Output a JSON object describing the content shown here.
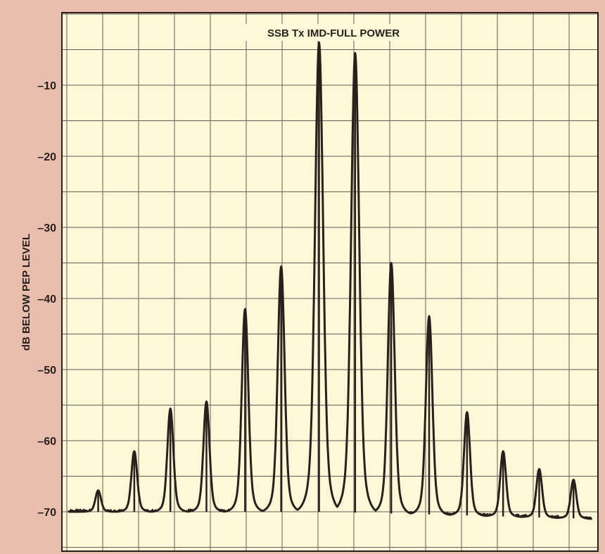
{
  "chart_data": {
    "type": "line",
    "title": "SSB Tx IMD-FULL POWER",
    "xlabel": "",
    "ylabel": "dB BELOW PEP LEVEL",
    "ylim": [
      -75,
      0
    ],
    "yticks": [
      -10,
      -20,
      -30,
      -40,
      -50,
      -60,
      -70
    ],
    "ytick_labels": [
      "–10",
      "–20",
      "–30",
      "–40",
      "–50",
      "–60",
      "–70"
    ],
    "xlim": [
      0,
      14.5
    ],
    "grid": true,
    "background_color": "#fdf8d7",
    "grid_color": "#6a5a55",
    "trace_color": "#2b1f1c",
    "noise_floor": [
      {
        "x": 0,
        "y": -70
      },
      {
        "x": 7,
        "y": -70
      },
      {
        "x": 11,
        "y": -70.5
      },
      {
        "x": 14.5,
        "y": -71
      }
    ],
    "peaks": [
      {
        "x": 0.83,
        "y": -67
      },
      {
        "x": 1.83,
        "y": -61.5
      },
      {
        "x": 2.83,
        "y": -55.5
      },
      {
        "x": 3.83,
        "y": -54.5
      },
      {
        "x": 4.9,
        "y": -41.5
      },
      {
        "x": 5.9,
        "y": -35.5
      },
      {
        "x": 6.95,
        "y": -4
      },
      {
        "x": 7.95,
        "y": -5.5
      },
      {
        "x": 8.95,
        "y": -35
      },
      {
        "x": 10.0,
        "y": -42.5
      },
      {
        "x": 11.05,
        "y": -56
      },
      {
        "x": 12.05,
        "y": -61.5
      },
      {
        "x": 13.05,
        "y": -64
      },
      {
        "x": 14.0,
        "y": -65.5
      }
    ],
    "series": [
      {
        "values": []
      }
    ]
  }
}
